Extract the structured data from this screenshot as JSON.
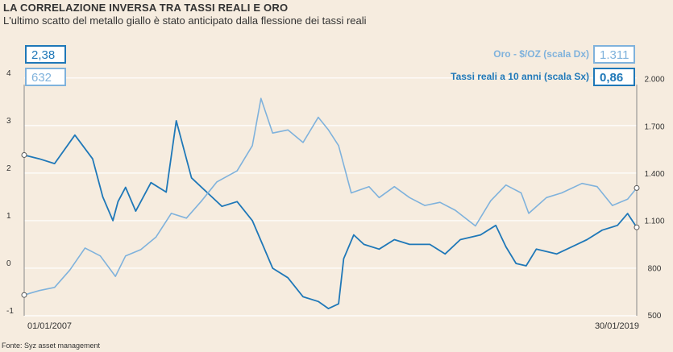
{
  "header": {
    "title": "LA CORRELAZIONE INVERSA TRA TASSI REALI E ORO",
    "subtitle": "L'ultimo scatto del metallo giallo è stato anticipato dalla flessione dei tassi reali"
  },
  "source": "Fonte: Syz asset management",
  "colors": {
    "rates": "#1f78b8",
    "gold": "#7fb2dc",
    "background": "#f6ecdf",
    "grid": "#ffffff",
    "text": "#333333"
  },
  "value_boxes": {
    "rates_start": "2,38",
    "gold_start": "632",
    "gold_end": "1.311",
    "rates_end": "0,86"
  },
  "chart_data": {
    "type": "line",
    "x_labels": {
      "start": "01/01/2007",
      "end": "30/01/2019"
    },
    "x_range": [
      2007.0,
      2019.08
    ],
    "left_axis": {
      "ticks": [
        "4",
        "3",
        "2",
        "1",
        "0",
        "-1"
      ],
      "min": -1,
      "max": 4.2
    },
    "right_axis": {
      "ticks": [
        "2.000",
        "1.700",
        "1.400",
        "1.100",
        "800",
        "500"
      ],
      "min": 500,
      "max": 2070
    },
    "series": [
      {
        "name": "Tassi reali a 10 anni (scala Sx)",
        "axis": "left",
        "x": [
          2007.0,
          2007.3,
          2007.6,
          2008.0,
          2008.35,
          2008.55,
          2008.75,
          2008.85,
          2009.0,
          2009.2,
          2009.5,
          2009.8,
          2010.0,
          2010.3,
          2010.6,
          2010.9,
          2011.2,
          2011.5,
          2011.7,
          2011.9,
          2012.2,
          2012.5,
          2012.8,
          2013.0,
          2013.2,
          2013.3,
          2013.5,
          2013.7,
          2014.0,
          2014.3,
          2014.6,
          2015.0,
          2015.3,
          2015.6,
          2016.0,
          2016.3,
          2016.5,
          2016.7,
          2016.9,
          2017.1,
          2017.5,
          2017.9,
          2018.1,
          2018.4,
          2018.7,
          2018.9,
          2019.08
        ],
        "values": [
          2.38,
          2.3,
          2.2,
          2.8,
          2.3,
          1.5,
          1.0,
          1.4,
          1.7,
          1.2,
          1.8,
          1.6,
          3.1,
          1.9,
          1.6,
          1.3,
          1.4,
          1.0,
          0.5,
          0.0,
          -0.2,
          -0.6,
          -0.7,
          -0.85,
          -0.75,
          0.2,
          0.7,
          0.5,
          0.4,
          0.6,
          0.5,
          0.5,
          0.3,
          0.6,
          0.7,
          0.9,
          0.45,
          0.1,
          0.05,
          0.4,
          0.3,
          0.5,
          0.6,
          0.8,
          0.9,
          1.15,
          0.86
        ]
      },
      {
        "name": "Oro - $/OZ (scala Dx)",
        "axis": "right",
        "x": [
          2007.0,
          2007.3,
          2007.6,
          2007.9,
          2008.2,
          2008.5,
          2008.8,
          2009.0,
          2009.3,
          2009.6,
          2009.9,
          2010.2,
          2010.5,
          2010.8,
          2011.2,
          2011.5,
          2011.67,
          2011.9,
          2012.2,
          2012.5,
          2012.8,
          2013.0,
          2013.2,
          2013.45,
          2013.8,
          2014.0,
          2014.3,
          2014.6,
          2014.9,
          2015.2,
          2015.5,
          2015.9,
          2016.2,
          2016.5,
          2016.8,
          2016.95,
          2017.3,
          2017.6,
          2018.0,
          2018.3,
          2018.6,
          2018.9,
          2019.08
        ],
        "values": [
          632,
          660,
          680,
          790,
          930,
          880,
          750,
          880,
          920,
          1000,
          1150,
          1120,
          1230,
          1350,
          1420,
          1580,
          1880,
          1660,
          1680,
          1600,
          1760,
          1680,
          1580,
          1280,
          1320,
          1250,
          1320,
          1250,
          1200,
          1220,
          1170,
          1070,
          1230,
          1330,
          1280,
          1150,
          1250,
          1280,
          1340,
          1320,
          1200,
          1240,
          1311
        ]
      }
    ]
  }
}
